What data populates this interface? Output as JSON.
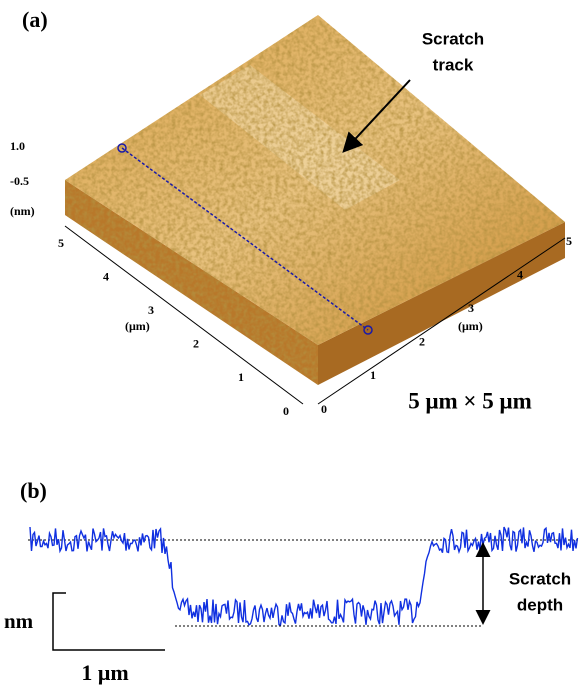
{
  "panel_a": {
    "label": "(a)",
    "annotation": [
      "Scratch",
      "track"
    ],
    "z_axis": {
      "ticks": [
        "1.0",
        "-0.5"
      ],
      "unit": "(nm)"
    },
    "left_axis": {
      "ticks": [
        "5",
        "4",
        "3",
        "2",
        "1",
        "0"
      ],
      "unit": "(μm)"
    },
    "right_axis": {
      "ticks": [
        "0",
        "1",
        "2",
        "3",
        "4",
        "5"
      ],
      "unit": "(μm)"
    },
    "scan_size": "5 μm × 5 μm"
  },
  "panel_b": {
    "label": "(b)",
    "annotation": [
      "Scratch",
      "depth"
    ],
    "scale_y": "nm",
    "scale_x": "1 μm"
  }
}
